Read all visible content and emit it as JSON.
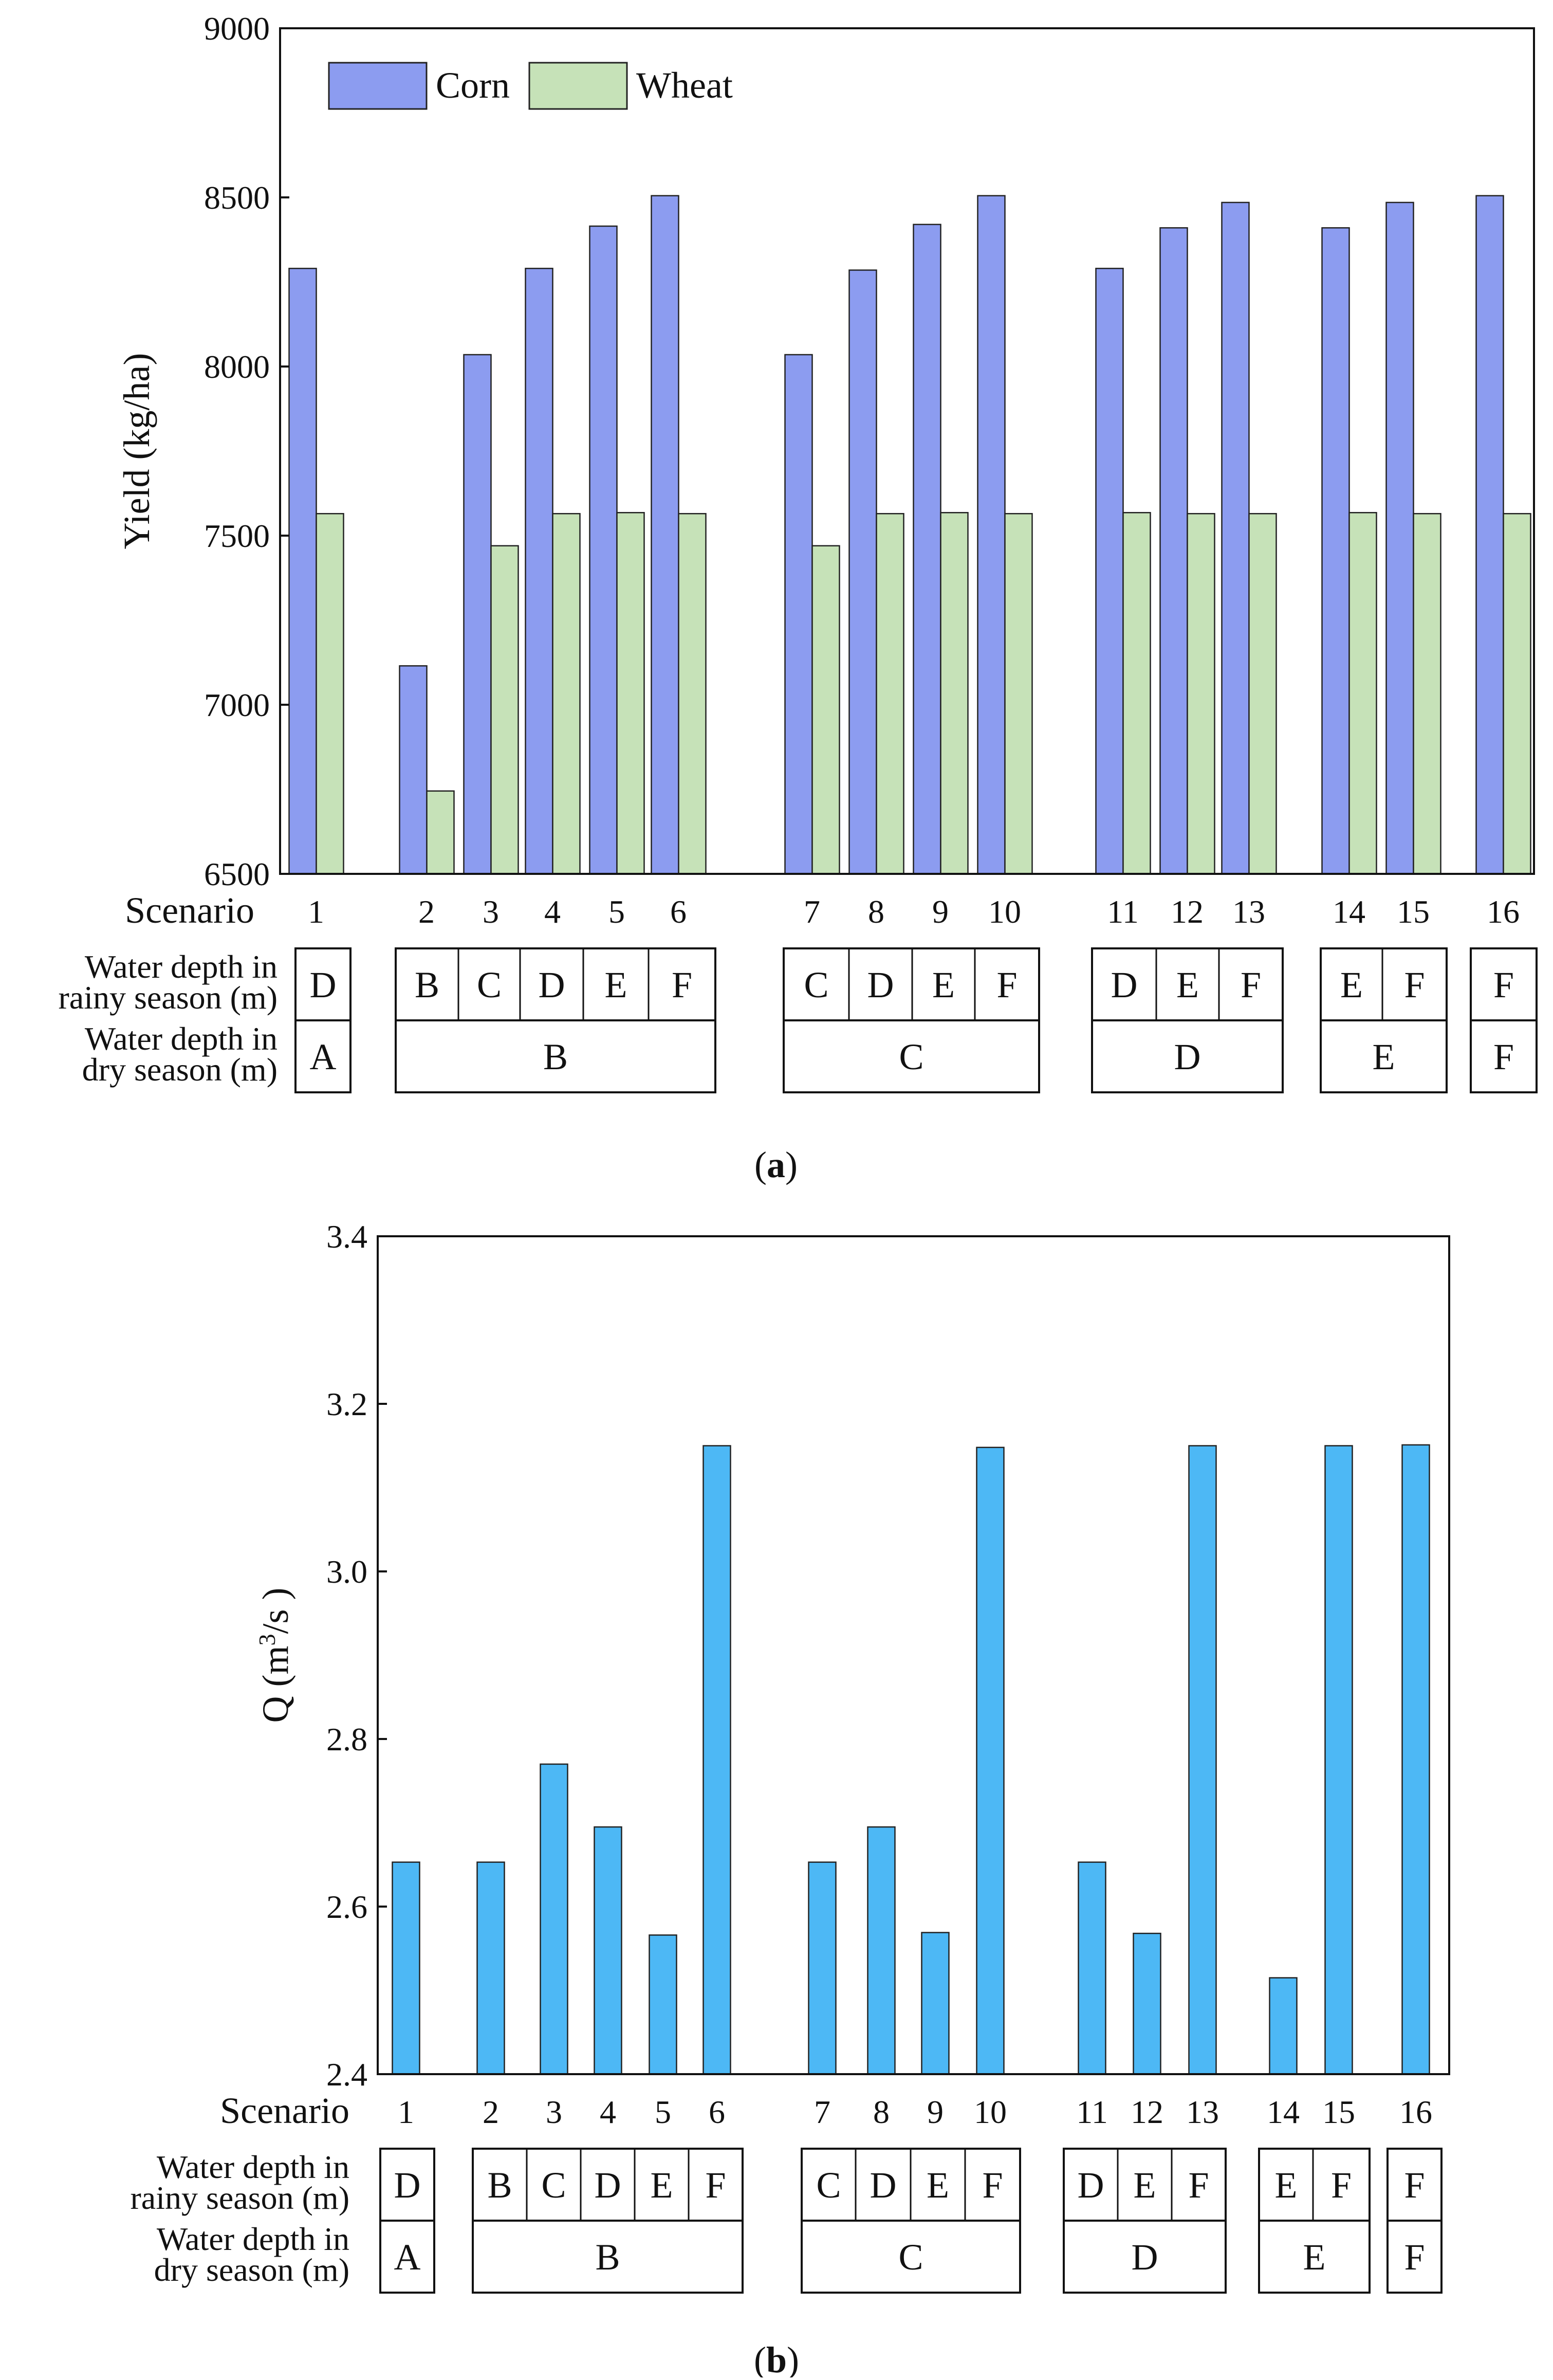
{
  "chart_data": [
    {
      "type": "bar",
      "panel_label": "a",
      "xlabel": "Scenario",
      "ylabel": "Yield (kg/ha)",
      "ylim": [
        6500,
        9000
      ],
      "yticks": [
        6500,
        7000,
        7500,
        8000,
        8500,
        9000
      ],
      "legend_placement": "top-left",
      "categories": [
        "1",
        "2",
        "3",
        "4",
        "5",
        "6",
        "7",
        "8",
        "9",
        "10",
        "11",
        "12",
        "13",
        "14",
        "15",
        "16"
      ],
      "series": [
        {
          "name": "Corn",
          "color": "#8c9cf0",
          "values": [
            8290,
            7115,
            8035,
            8290,
            8415,
            8505,
            8035,
            8285,
            8420,
            8505,
            8290,
            8410,
            8485,
            8410,
            8485,
            8505
          ]
        },
        {
          "name": "Wheat",
          "color": "#c6e2b8",
          "values": [
            7565,
            6745,
            7470,
            7565,
            7568,
            7565,
            7470,
            7565,
            7568,
            7565,
            7568,
            7565,
            7565,
            7568,
            7565,
            7565
          ]
        }
      ],
      "row_labels": {
        "rainy": "Water depth in\nrainy season (m)",
        "dry": "Water depth in\ndry season (m)"
      },
      "rainy_groups": [
        [
          "D"
        ],
        [
          "B",
          "C",
          "D",
          "E",
          "F"
        ],
        [
          "C",
          "D",
          "E",
          "F"
        ],
        [
          "D",
          "E",
          "F"
        ],
        [
          "E",
          "F"
        ],
        [
          "F"
        ]
      ],
      "dry_groups": [
        "A",
        "B",
        "C",
        "D",
        "E",
        "F"
      ]
    },
    {
      "type": "bar",
      "panel_label": "b",
      "xlabel": "Scenario",
      "ylabel": "Q (m3/s )",
      "ylim": [
        2.4,
        3.4
      ],
      "yticks": [
        "2.4",
        "2.6",
        "2.8",
        "3.0",
        "3.2",
        "3.4"
      ],
      "categories": [
        "1",
        "2",
        "3",
        "4",
        "5",
        "6",
        "7",
        "8",
        "9",
        "10",
        "11",
        "12",
        "13",
        "14",
        "15",
        "16"
      ],
      "series": [
        {
          "color": "#4db8f5",
          "values": [
            2.653,
            2.653,
            2.77,
            2.695,
            2.566,
            3.15,
            2.653,
            2.695,
            2.569,
            3.148,
            2.653,
            2.568,
            3.15,
            2.515,
            3.15,
            3.151
          ]
        }
      ],
      "row_labels": {
        "rainy": "Water depth in\nrainy season (m)",
        "dry": "Water depth in\ndry season (m)"
      },
      "rainy_groups": [
        [
          "D"
        ],
        [
          "B",
          "C",
          "D",
          "E",
          "F"
        ],
        [
          "C",
          "D",
          "E",
          "F"
        ],
        [
          "D",
          "E",
          "F"
        ],
        [
          "E",
          "F"
        ],
        [
          "F"
        ]
      ],
      "dry_groups": [
        "A",
        "B",
        "C",
        "D",
        "E",
        "F"
      ]
    }
  ]
}
